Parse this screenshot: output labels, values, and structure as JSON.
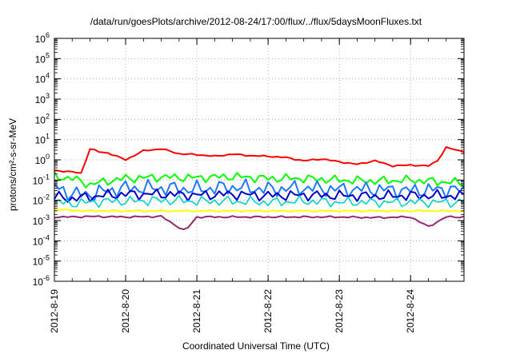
{
  "chart_data": {
    "type": "line",
    "title": "/data/run/goesPlots/archive/2012-08-24/17:00/flux/../flux/5daysMoonFluxes.txt",
    "xlabel": "Coordinated Universal Time (UTC)",
    "ylabel": "protons/cm²-s-sr-MeV",
    "yscale": "log",
    "ylim": [
      1e-06,
      1000000.0
    ],
    "xlim": [
      "2012-8-19",
      "2012-8-24 18:00"
    ],
    "grid": true,
    "x_tick_labels": [
      "2012-8-19",
      "2012-8-20",
      "2012-8-21",
      "2012-8-22",
      "2012-8-23",
      "2012-8-24"
    ],
    "y_ticks": [
      {
        "base": "10",
        "exp": "-6"
      },
      {
        "base": "10",
        "exp": "-5"
      },
      {
        "base": "10",
        "exp": "-4"
      },
      {
        "base": "10",
        "exp": "-3"
      },
      {
        "base": "10",
        "exp": "-2"
      },
      {
        "base": "10",
        "exp": "-1"
      },
      {
        "base": "10",
        "exp": "0"
      },
      {
        "base": "10",
        "exp": "1"
      },
      {
        "base": "10",
        "exp": "2"
      },
      {
        "base": "10",
        "exp": "3"
      },
      {
        "base": "10",
        "exp": "4"
      },
      {
        "base": "10",
        "exp": "5"
      },
      {
        "base": "10",
        "exp": "6"
      }
    ],
    "series": [
      {
        "color": "#ff0000",
        "x": [
          "2012-8-19 00:00",
          "2012-8-19 06:00",
          "2012-8-19 09:00",
          "2012-8-19 12:00",
          "2012-8-19 15:00",
          "2012-8-19 18:00",
          "2012-8-20 00:00",
          "2012-8-20 06:00",
          "2012-8-20 12:00",
          "2012-8-20 18:00",
          "2012-8-21 00:00",
          "2012-8-21 06:00",
          "2012-8-21 12:00",
          "2012-8-21 18:00",
          "2012-8-22 00:00",
          "2012-8-22 06:00",
          "2012-8-22 12:00",
          "2012-8-22 18:00",
          "2012-8-23 00:00",
          "2012-8-23 06:00",
          "2012-8-23 12:00",
          "2012-8-23 18:00",
          "2012-8-24 00:00",
          "2012-8-24 06:00",
          "2012-8-24 09:00",
          "2012-8-24 12:00",
          "2012-8-24 18:00"
        ],
        "y": [
          0.3,
          0.25,
          0.22,
          3.5,
          2.5,
          2.2,
          1.0,
          2.8,
          3.5,
          2.0,
          1.8,
          1.5,
          1.9,
          1.6,
          1.5,
          1.3,
          0.9,
          1.1,
          0.8,
          0.6,
          0.9,
          0.5,
          0.55,
          0.5,
          0.9,
          4.0,
          2.5
        ]
      },
      {
        "color": "#00ff00",
        "x": [
          "2012-8-19 00:00",
          "2012-8-19 06:00",
          "2012-8-19 12:00",
          "2012-8-19 18:00",
          "2012-8-20 00:00",
          "2012-8-20 12:00",
          "2012-8-21 00:00",
          "2012-8-21 12:00",
          "2012-8-22 00:00",
          "2012-8-22 12:00",
          "2012-8-23 00:00",
          "2012-8-23 12:00",
          "2012-8-24 00:00",
          "2012-8-24 12:00",
          "2012-8-24 18:00"
        ],
        "y": [
          0.15,
          0.12,
          0.06,
          0.09,
          0.12,
          0.14,
          0.13,
          0.15,
          0.12,
          0.12,
          0.1,
          0.09,
          0.1,
          0.08,
          0.07
        ]
      },
      {
        "color": "#1e78ff",
        "x": [
          "2012-8-19 00:00",
          "2012-8-19 06:00",
          "2012-8-19 12:00",
          "2012-8-19 18:00",
          "2012-8-20 00:00",
          "2012-8-20 12:00",
          "2012-8-21 00:00",
          "2012-8-21 12:00",
          "2012-8-22 00:00",
          "2012-8-22 12:00",
          "2012-8-23 00:00",
          "2012-8-23 12:00",
          "2012-8-24 00:00",
          "2012-8-24 12:00",
          "2012-8-24 18:00"
        ],
        "y": [
          0.05,
          0.02,
          0.02,
          0.03,
          0.04,
          0.04,
          0.035,
          0.045,
          0.035,
          0.04,
          0.035,
          0.035,
          0.03,
          0.035,
          0.03
        ]
      },
      {
        "color": "#0000c8",
        "x": [
          "2012-8-19 00:00",
          "2012-8-19 06:00",
          "2012-8-19 12:00",
          "2012-8-19 18:00",
          "2012-8-20 00:00",
          "2012-8-20 12:00",
          "2012-8-21 00:00",
          "2012-8-21 12:00",
          "2012-8-22 00:00",
          "2012-8-22 12:00",
          "2012-8-23 00:00",
          "2012-8-23 12:00",
          "2012-8-24 00:00",
          "2012-8-24 12:00",
          "2012-8-24 18:00"
        ],
        "y": [
          0.015,
          0.012,
          0.015,
          0.018,
          0.02,
          0.02,
          0.018,
          0.02,
          0.017,
          0.018,
          0.017,
          0.016,
          0.017,
          0.017,
          0.016
        ]
      },
      {
        "color": "#00d2c8",
        "x": [
          "2012-8-19 00:00",
          "2012-8-19 06:00",
          "2012-8-19 12:00",
          "2012-8-19 18:00",
          "2012-8-20 00:00",
          "2012-8-20 12:00",
          "2012-8-21 00:00",
          "2012-8-21 12:00",
          "2012-8-22 00:00",
          "2012-8-22 12:00",
          "2012-8-23 00:00",
          "2012-8-23 12:00",
          "2012-8-24 00:00",
          "2012-8-24 12:00",
          "2012-8-24 18:00"
        ],
        "y": [
          0.008,
          0.007,
          0.008,
          0.009,
          0.009,
          0.01,
          0.009,
          0.009,
          0.008,
          0.009,
          0.008,
          0.008,
          0.008,
          0.008,
          0.008
        ]
      },
      {
        "color": "#ffff00",
        "x": [
          "2012-8-19 00:00",
          "2012-8-19 12:00",
          "2012-8-20 00:00",
          "2012-8-20 12:00",
          "2012-8-21 00:00",
          "2012-8-21 12:00",
          "2012-8-22 00:00",
          "2012-8-22 12:00",
          "2012-8-23 00:00",
          "2012-8-23 12:00",
          "2012-8-24 00:00",
          "2012-8-24 12:00",
          "2012-8-24 18:00"
        ],
        "y": [
          0.0035,
          0.003,
          0.003,
          0.003,
          0.003,
          0.003,
          0.003,
          0.003,
          0.003,
          0.003,
          0.003,
          0.003,
          0.003
        ]
      },
      {
        "color": "#96286e",
        "x": [
          "2012-8-19 00:00",
          "2012-8-19 06:00",
          "2012-8-19 12:00",
          "2012-8-20 00:00",
          "2012-8-20 12:00",
          "2012-8-20 20:00",
          "2012-8-21 00:00",
          "2012-8-21 12:00",
          "2012-8-22 00:00",
          "2012-8-22 12:00",
          "2012-8-23 00:00",
          "2012-8-23 12:00",
          "2012-8-24 00:00",
          "2012-8-24 06:00",
          "2012-8-24 12:00",
          "2012-8-24 18:00"
        ],
        "y": [
          0.0015,
          0.0015,
          0.0016,
          0.0015,
          0.0016,
          0.0003,
          0.0015,
          0.0015,
          0.0015,
          0.0015,
          0.0015,
          0.0014,
          0.0015,
          0.0005,
          0.0015,
          0.0015
        ]
      }
    ]
  }
}
